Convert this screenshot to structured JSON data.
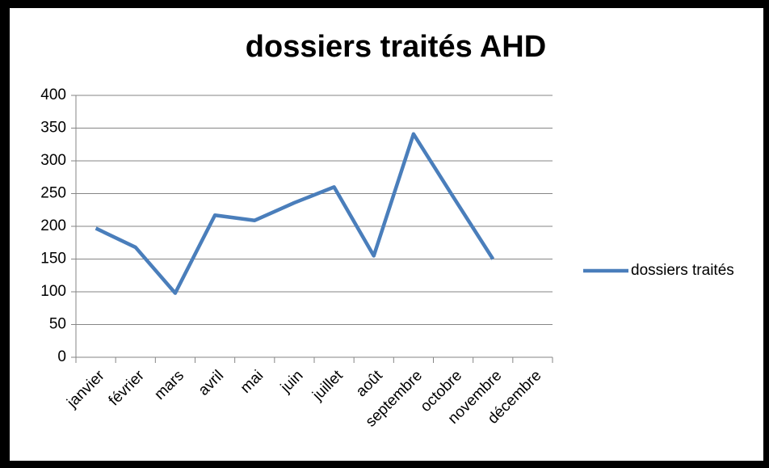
{
  "chart_data": {
    "type": "line",
    "title": "dossiers traités AHD",
    "categories": [
      "janvier",
      "février",
      "mars",
      "avril",
      "mai",
      "juin",
      "juillet",
      "août",
      "septembre",
      "octobre",
      "novembre",
      "décembre"
    ],
    "series": [
      {
        "name": "dossiers traités",
        "color": "#4a7ebb",
        "values": [
          197,
          168,
          98,
          217,
          209,
          236,
          260,
          155,
          341,
          245,
          150,
          null
        ]
      }
    ],
    "ylim": [
      0,
      400
    ],
    "yticks": [
      0,
      50,
      100,
      150,
      200,
      250,
      300,
      350,
      400
    ],
    "grid": true,
    "legend": "right"
  }
}
